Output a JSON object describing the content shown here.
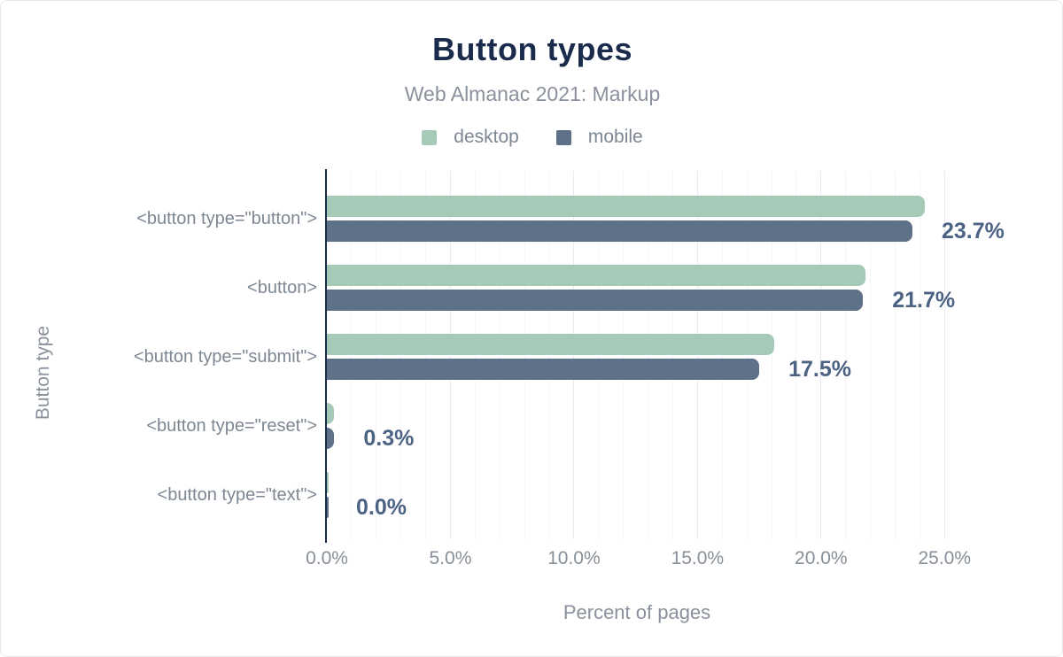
{
  "figure": {
    "title": "Button types",
    "subtitle": "Web Almanac 2021: Markup"
  },
  "chart_data": {
    "type": "bar",
    "orientation": "horizontal",
    "title": "Button types",
    "subtitle": "Web Almanac 2021: Markup",
    "categories": [
      "<button type=\"button\">",
      "<button>",
      "<button type=\"submit\">",
      "<button type=\"reset\">",
      "<button type=\"text\">"
    ],
    "series": [
      {
        "name": "desktop",
        "color": "#a6cab8",
        "values": [
          24.2,
          21.8,
          18.1,
          0.3,
          0.0
        ]
      },
      {
        "name": "mobile",
        "color": "#5f7089",
        "values": [
          23.7,
          21.7,
          17.5,
          0.3,
          0.0
        ]
      }
    ],
    "annotations": [
      "23.7%",
      "21.7%",
      "17.5%",
      "0.3%",
      "0.0%"
    ],
    "annotation_series": "mobile",
    "xlabel": "Percent of pages",
    "ylabel": "Button type",
    "x_ticks": [
      {
        "v": 0,
        "label": "0.0%"
      },
      {
        "v": 5,
        "label": "5.0%"
      },
      {
        "v": 10,
        "label": "10.0%"
      },
      {
        "v": 15,
        "label": "15.0%"
      },
      {
        "v": 20,
        "label": "20.0%"
      },
      {
        "v": 25,
        "label": "25.0%"
      }
    ],
    "xlim": [
      0,
      27.5
    ],
    "grid": {
      "minor_step_pct": 1,
      "major_step_pct": 5,
      "on": true
    },
    "legend_position": "top",
    "colors": {
      "title": "#1a2b4c",
      "subtitle": "#8a919c",
      "annotation": "#4d6384",
      "axis_line": "#1b2b4a",
      "text_gray": "#7d8793",
      "tick_gray": "#878f99",
      "gridline_minor": "#f4f5f6",
      "gridline_major": "#eaebed"
    }
  }
}
